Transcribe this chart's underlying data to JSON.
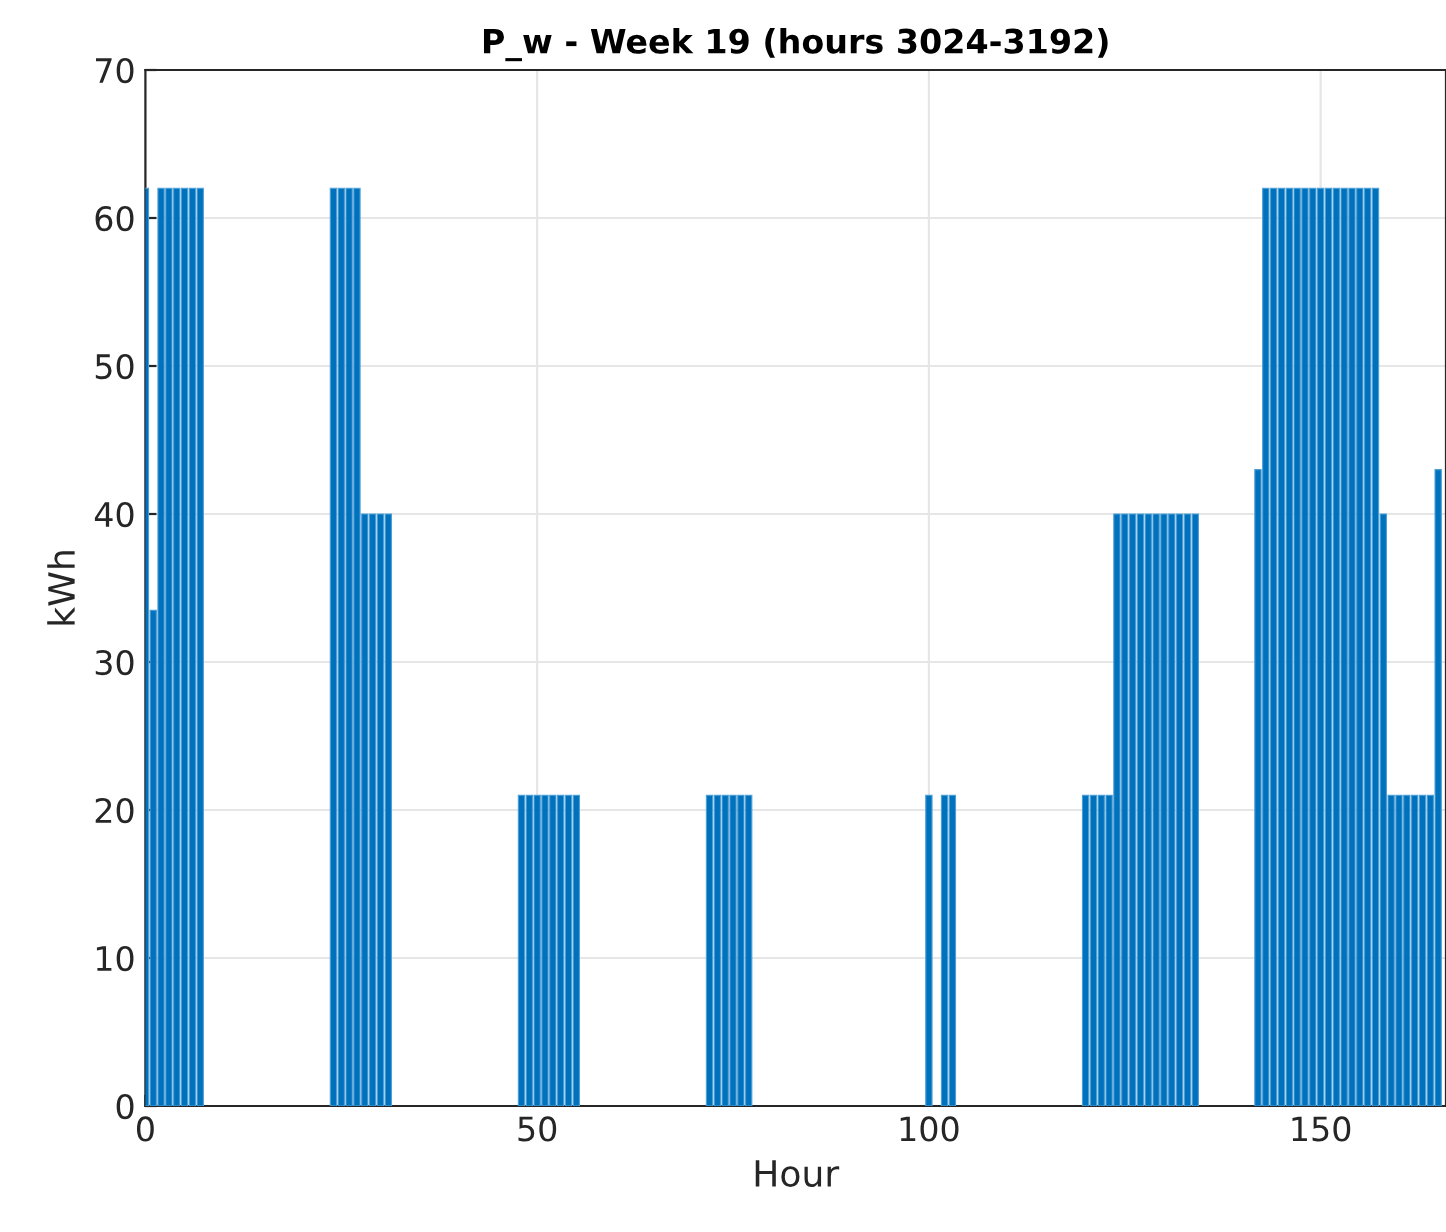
{
  "chart_data": {
    "type": "bar",
    "title": "P_w - Week 19 (hours 3024-3192)",
    "xlabel": "Hour",
    "ylabel": "kWh",
    "x": [
      0,
      1,
      2,
      3,
      4,
      5,
      6,
      7,
      24,
      25,
      26,
      27,
      28,
      29,
      30,
      31,
      48,
      49,
      50,
      51,
      52,
      53,
      54,
      55,
      72,
      73,
      74,
      75,
      76,
      77,
      100,
      102,
      103,
      120,
      121,
      122,
      123,
      124,
      125,
      126,
      127,
      128,
      129,
      130,
      131,
      132,
      133,
      134,
      142,
      143,
      144,
      145,
      146,
      147,
      148,
      149,
      150,
      151,
      152,
      153,
      154,
      155,
      156,
      157,
      158,
      159,
      160,
      161,
      162,
      163,
      164,
      165
    ],
    "values": [
      62,
      33.5,
      62,
      62,
      62,
      62,
      62,
      62,
      62,
      62,
      62,
      62,
      40,
      40,
      40,
      40,
      21,
      21,
      21,
      21,
      21,
      21,
      21,
      21,
      21,
      21,
      21,
      21,
      21,
      21,
      21,
      21,
      21,
      21,
      21,
      21,
      21,
      40,
      40,
      40,
      40,
      40,
      40,
      40,
      40,
      40,
      40,
      40,
      43,
      62,
      62,
      62,
      62,
      62,
      62,
      62,
      62,
      62,
      62,
      62,
      62,
      62,
      62,
      62,
      40,
      21,
      21,
      21,
      21,
      21,
      21,
      43
    ],
    "color": "#0072bd",
    "xlim": [
      0,
      166
    ],
    "ylim": [
      0,
      70
    ],
    "xticks": [
      0,
      50,
      100,
      150
    ],
    "yticks": [
      0,
      10,
      20,
      30,
      40,
      50,
      60,
      70
    ],
    "grid": true
  }
}
